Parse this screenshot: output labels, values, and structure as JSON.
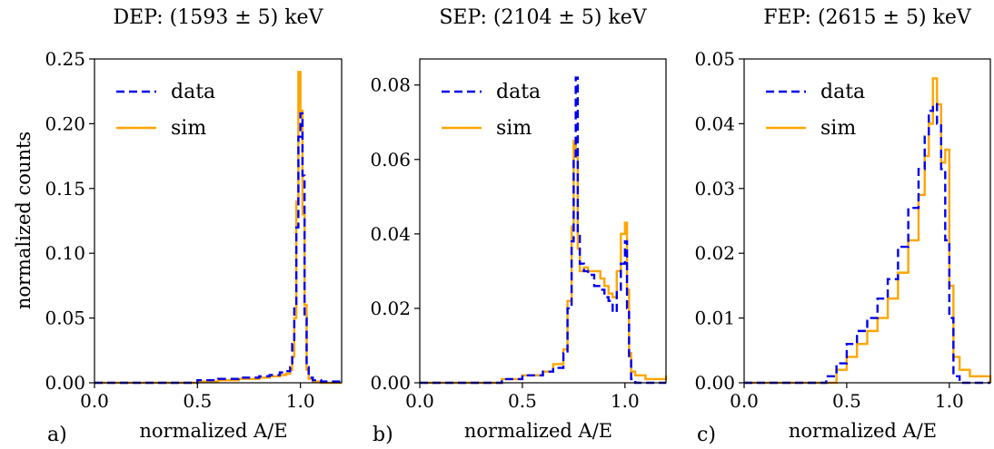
{
  "figure": {
    "ylabel": "normalized counts"
  },
  "legend_labels": {
    "data": "data",
    "sim": "sim"
  },
  "colors": {
    "data": "#0000ee",
    "sim": "#ffa500"
  },
  "chart_data": [
    {
      "type": "line",
      "panel_label": "a)",
      "title": "DEP: (1593 ± 5) keV",
      "xlabel": "normalized A/E",
      "ylabel": "normalized counts",
      "xlim": [
        0.0,
        1.2
      ],
      "ylim": [
        0.0,
        0.25
      ],
      "xticks": [
        "0.0",
        "0.5",
        "1.0"
      ],
      "xtick_values": [
        0.0,
        0.5,
        1.0
      ],
      "yticks": [
        "0.00",
        "0.05",
        "0.10",
        "0.15",
        "0.20",
        "0.25"
      ],
      "ytick_values": [
        0.0,
        0.05,
        0.1,
        0.15,
        0.2,
        0.25
      ],
      "legend": "top-left",
      "series": [
        {
          "name": "data",
          "style": "dashed",
          "x": [
            0.0,
            0.4,
            0.5,
            0.6,
            0.7,
            0.8,
            0.85,
            0.9,
            0.93,
            0.95,
            0.96,
            0.97,
            0.98,
            0.99,
            1.0,
            1.01,
            1.02,
            1.03,
            1.04,
            1.06,
            1.1,
            1.2
          ],
          "y": [
            0.0,
            0.0,
            0.002,
            0.003,
            0.004,
            0.005,
            0.006,
            0.008,
            0.009,
            0.012,
            0.03,
            0.06,
            0.12,
            0.19,
            0.208,
            0.16,
            0.05,
            0.012,
            0.004,
            0.002,
            0.001,
            0.0
          ]
        },
        {
          "name": "sim",
          "style": "solid",
          "x": [
            0.0,
            0.4,
            0.5,
            0.6,
            0.7,
            0.8,
            0.85,
            0.9,
            0.93,
            0.95,
            0.96,
            0.97,
            0.98,
            0.99,
            1.0,
            1.01,
            1.02,
            1.03,
            1.04,
            1.06,
            1.1,
            1.2
          ],
          "y": [
            0.0,
            0.0,
            0.001,
            0.002,
            0.003,
            0.004,
            0.005,
            0.006,
            0.007,
            0.01,
            0.02,
            0.05,
            0.14,
            0.24,
            0.21,
            0.13,
            0.06,
            0.01,
            0.003,
            0.001,
            0.0,
            0.0
          ]
        }
      ]
    },
    {
      "type": "line",
      "panel_label": "b)",
      "title": "SEP: (2104 ± 5) keV",
      "xlabel": "normalized A/E",
      "xlim": [
        0.0,
        1.2
      ],
      "ylim": [
        0.0,
        0.087
      ],
      "xticks": [
        "0.0",
        "0.5",
        "1.0"
      ],
      "xtick_values": [
        0.0,
        0.5,
        1.0
      ],
      "yticks": [
        "0.00",
        "0.02",
        "0.04",
        "0.06",
        "0.08"
      ],
      "ytick_values": [
        0.0,
        0.02,
        0.04,
        0.06,
        0.08
      ],
      "legend": "top-left",
      "series": [
        {
          "name": "data",
          "style": "dashed",
          "x": [
            0.0,
            0.35,
            0.4,
            0.5,
            0.6,
            0.65,
            0.7,
            0.72,
            0.74,
            0.75,
            0.76,
            0.77,
            0.78,
            0.8,
            0.82,
            0.85,
            0.88,
            0.9,
            0.92,
            0.94,
            0.96,
            0.98,
            1.0,
            1.01,
            1.02,
            1.03,
            1.05,
            1.1,
            1.2
          ],
          "y": [
            0.0,
            0.0,
            0.001,
            0.002,
            0.003,
            0.004,
            0.008,
            0.02,
            0.038,
            0.06,
            0.082,
            0.04,
            0.032,
            0.03,
            0.029,
            0.026,
            0.025,
            0.023,
            0.022,
            0.019,
            0.025,
            0.032,
            0.038,
            0.02,
            0.006,
            0.001,
            0.0,
            0.0,
            0.0
          ]
        },
        {
          "name": "sim",
          "style": "solid",
          "x": [
            0.0,
            0.35,
            0.4,
            0.5,
            0.6,
            0.65,
            0.7,
            0.72,
            0.74,
            0.75,
            0.76,
            0.77,
            0.78,
            0.8,
            0.82,
            0.85,
            0.88,
            0.9,
            0.92,
            0.94,
            0.96,
            0.98,
            1.0,
            1.01,
            1.02,
            1.03,
            1.05,
            1.1,
            1.2
          ],
          "y": [
            0.0,
            0.0,
            0.001,
            0.002,
            0.003,
            0.005,
            0.009,
            0.022,
            0.042,
            0.065,
            0.062,
            0.036,
            0.03,
            0.031,
            0.03,
            0.03,
            0.028,
            0.026,
            0.024,
            0.023,
            0.03,
            0.04,
            0.043,
            0.025,
            0.008,
            0.003,
            0.002,
            0.001,
            0.002
          ]
        }
      ]
    },
    {
      "type": "line",
      "panel_label": "c)",
      "title": "FEP: (2615 ± 5) keV",
      "xlabel": "normalized A/E",
      "xlim": [
        0.0,
        1.2
      ],
      "ylim": [
        0.0,
        0.05
      ],
      "xticks": [
        "0.0",
        "0.5",
        "1.0"
      ],
      "xtick_values": [
        0.0,
        0.5,
        1.0
      ],
      "yticks": [
        "0.00",
        "0.01",
        "0.02",
        "0.03",
        "0.04",
        "0.05"
      ],
      "ytick_values": [
        0.0,
        0.01,
        0.02,
        0.03,
        0.04,
        0.05
      ],
      "legend": "top-left",
      "series": [
        {
          "name": "data",
          "style": "dashed",
          "x": [
            0.0,
            0.35,
            0.4,
            0.45,
            0.5,
            0.55,
            0.6,
            0.65,
            0.7,
            0.75,
            0.8,
            0.85,
            0.88,
            0.9,
            0.92,
            0.94,
            0.96,
            0.98,
            1.0,
            1.02,
            1.05,
            1.1,
            1.2
          ],
          "y": [
            0.0,
            0.0,
            0.001,
            0.003,
            0.006,
            0.008,
            0.01,
            0.013,
            0.016,
            0.021,
            0.027,
            0.033,
            0.038,
            0.042,
            0.043,
            0.04,
            0.033,
            0.022,
            0.01,
            0.001,
            0.0,
            0.0,
            0.0
          ]
        },
        {
          "name": "sim",
          "style": "solid",
          "x": [
            0.0,
            0.35,
            0.4,
            0.45,
            0.5,
            0.55,
            0.6,
            0.65,
            0.7,
            0.75,
            0.8,
            0.85,
            0.88,
            0.9,
            0.92,
            0.94,
            0.96,
            0.98,
            1.0,
            1.02,
            1.05,
            1.1,
            1.2
          ],
          "y": [
            0.0,
            0.0,
            0.0,
            0.002,
            0.004,
            0.006,
            0.008,
            0.01,
            0.013,
            0.017,
            0.022,
            0.029,
            0.035,
            0.04,
            0.047,
            0.043,
            0.034,
            0.036,
            0.015,
            0.004,
            0.002,
            0.001,
            0.0
          ]
        }
      ]
    }
  ]
}
